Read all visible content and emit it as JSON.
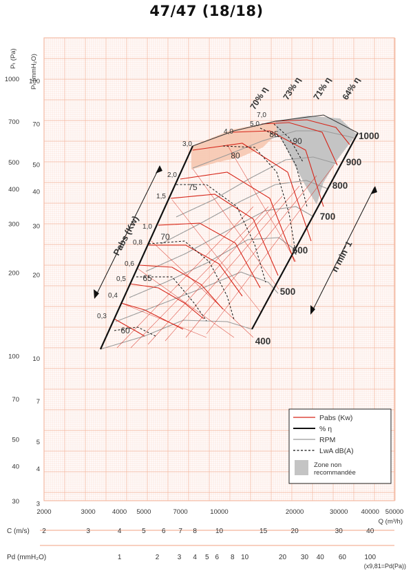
{
  "title": "47/47 (18/18)",
  "chart_data": {
    "type": "line",
    "title": "47/47 (18/18)",
    "scale": "log-log",
    "grid": true,
    "x_axis": {
      "label": "Q (m³/h)",
      "range": [
        2000,
        50000
      ],
      "ticks": [
        {
          "v": 2000,
          "label": "2000"
        },
        {
          "v": 3000,
          "label": "3000"
        },
        {
          "v": 4000,
          "label": "4000"
        },
        {
          "v": 5000,
          "label": "5000"
        },
        {
          "v": 7000,
          "label": "7000"
        },
        {
          "v": 10000,
          "label": "10000"
        },
        {
          "v": 20000,
          "label": "20000"
        },
        {
          "v": 30000,
          "label": "30000"
        },
        {
          "v": 40000,
          "label": "40000"
        },
        {
          "v": 50000,
          "label": "50000"
        }
      ]
    },
    "y_axis_pa": {
      "label": "Pₜ (Pa)",
      "range": [
        30,
        1400
      ],
      "ticks": [
        {
          "v": 30,
          "label": "30"
        },
        {
          "v": 40,
          "label": "40"
        },
        {
          "v": 50,
          "label": "50"
        },
        {
          "v": 70,
          "label": "70"
        },
        {
          "v": 100,
          "label": "100"
        },
        {
          "v": 200,
          "label": "200"
        },
        {
          "v": 300,
          "label": "300"
        },
        {
          "v": 400,
          "label": "400"
        },
        {
          "v": 500,
          "label": "500"
        },
        {
          "v": 700,
          "label": "700"
        },
        {
          "v": 1000,
          "label": "1000"
        }
      ]
    },
    "y_axis_mmh2o": {
      "label": "Pₜ (mmH₂O)",
      "ticks": [
        {
          "v": 3,
          "label": "3"
        },
        {
          "v": 4,
          "label": "4"
        },
        {
          "v": 5,
          "label": "5"
        },
        {
          "v": 7,
          "label": "7"
        },
        {
          "v": 10,
          "label": "10"
        },
        {
          "v": 20,
          "label": "20"
        },
        {
          "v": 30,
          "label": "30"
        },
        {
          "v": 40,
          "label": "40"
        },
        {
          "v": 50,
          "label": "50"
        },
        {
          "v": 70,
          "label": "70"
        },
        {
          "v": 100,
          "label": "100"
        }
      ]
    },
    "c_scale": {
      "label": "C (m/s)",
      "ticks": [
        {
          "label": "2",
          "q": 2000
        },
        {
          "label": "3",
          "q": 3000
        },
        {
          "label": "4",
          "q": 4000
        },
        {
          "label": "5",
          "q": 5000
        },
        {
          "label": "6",
          "q": 6000
        },
        {
          "label": "7",
          "q": 7000
        },
        {
          "label": "8",
          "q": 8000
        },
        {
          "label": "10",
          "q": 10000
        },
        {
          "label": "15",
          "q": 15000
        },
        {
          "label": "20",
          "q": 20000
        },
        {
          "label": "30",
          "q": 30000
        },
        {
          "label": "40",
          "q": 40000
        }
      ]
    },
    "pd_scale": {
      "label": "Pd (mmH₂O)",
      "note": "(x9,81=Pd(Pa))",
      "ticks": [
        {
          "label": "1",
          "q": 4000
        },
        {
          "label": "2",
          "q": 5660
        },
        {
          "label": "3",
          "q": 6930
        },
        {
          "label": "4",
          "q": 8000
        },
        {
          "label": "5",
          "q": 8940
        },
        {
          "label": "6",
          "q": 9800
        },
        {
          "label": "8",
          "q": 11300
        },
        {
          "label": "10",
          "q": 12650
        },
        {
          "label": "20",
          "q": 17900
        },
        {
          "label": "30",
          "q": 21900
        },
        {
          "label": "40",
          "q": 25300
        },
        {
          "label": "60",
          "q": 31000
        },
        {
          "label": "100",
          "q": 40000
        }
      ]
    },
    "rpm_curves": [
      {
        "name": "400",
        "q": [
          3350,
          6500,
          9500,
          12300,
          14600
        ],
        "p": [
          76,
          165,
          150,
          118,
          92
        ]
      },
      {
        "name": "500",
        "q": [
          4200,
          8000,
          11800,
          14800,
          18700
        ],
        "p": [
          117,
          255,
          235,
          190,
          145
        ]
      },
      {
        "name": "600",
        "q": [
          5000,
          9500,
          14000,
          18500,
          22500
        ],
        "p": [
          170,
          370,
          345,
          275,
          210
        ]
      },
      {
        "name": "700",
        "q": [
          5900,
          11200,
          16500,
          21500,
          26200
        ],
        "p": [
          230,
          500,
          470,
          375,
          285
        ]
      },
      {
        "name": "800",
        "q": [
          6700,
          12800,
          18900,
          24500,
          29900
        ],
        "p": [
          300,
          650,
          610,
          490,
          372
        ]
      },
      {
        "name": "900",
        "q": [
          7500,
          14400,
          21200,
          27500,
          33700
        ],
        "p": [
          380,
          820,
          775,
          620,
          470
        ]
      },
      {
        "name": "1000",
        "q": [
          8400,
          16000,
          23600,
          30600,
          37400
        ],
        "p": [
          470,
          1000,
          960,
          765,
          580
        ]
      }
    ],
    "pabs_kw_labels": [
      "0,3",
      "0,4",
      "0,5",
      "0,6",
      "0,8",
      "1,0",
      "1,5",
      "2,0",
      "3,0",
      "4,0",
      "5,0",
      "7,0"
    ],
    "efficiency_labels": [
      "60",
      "65",
      "70",
      "75",
      "80",
      "85",
      "90"
    ],
    "efficiency_pct_labels": [
      "70% η",
      "73% η",
      "71% η",
      "64% η"
    ],
    "axis_annotations": {
      "pabs": "Pabs (Kw)",
      "rpm": "n min⁻1"
    },
    "legend": {
      "position": "bottom-right",
      "items": [
        {
          "label": "Pabs (Kw)",
          "color": "#d62418",
          "style": "solid"
        },
        {
          "label": "% η",
          "color": "#111111",
          "style": "bold"
        },
        {
          "label": "RPM",
          "color": "#9a9a9a",
          "style": "solid"
        },
        {
          "label": "LwA dB(A)",
          "color": "#111111",
          "style": "dashed"
        },
        {
          "label": "Zone non recommandée",
          "color": "#c4c4c4",
          "style": "area"
        }
      ]
    },
    "colors": {
      "grid": "#f4b7a0",
      "pabs": "#d62418",
      "rpm": "#9a9a9a",
      "zone": "#c4c4c4",
      "peach": "#f6c7b0"
    }
  }
}
